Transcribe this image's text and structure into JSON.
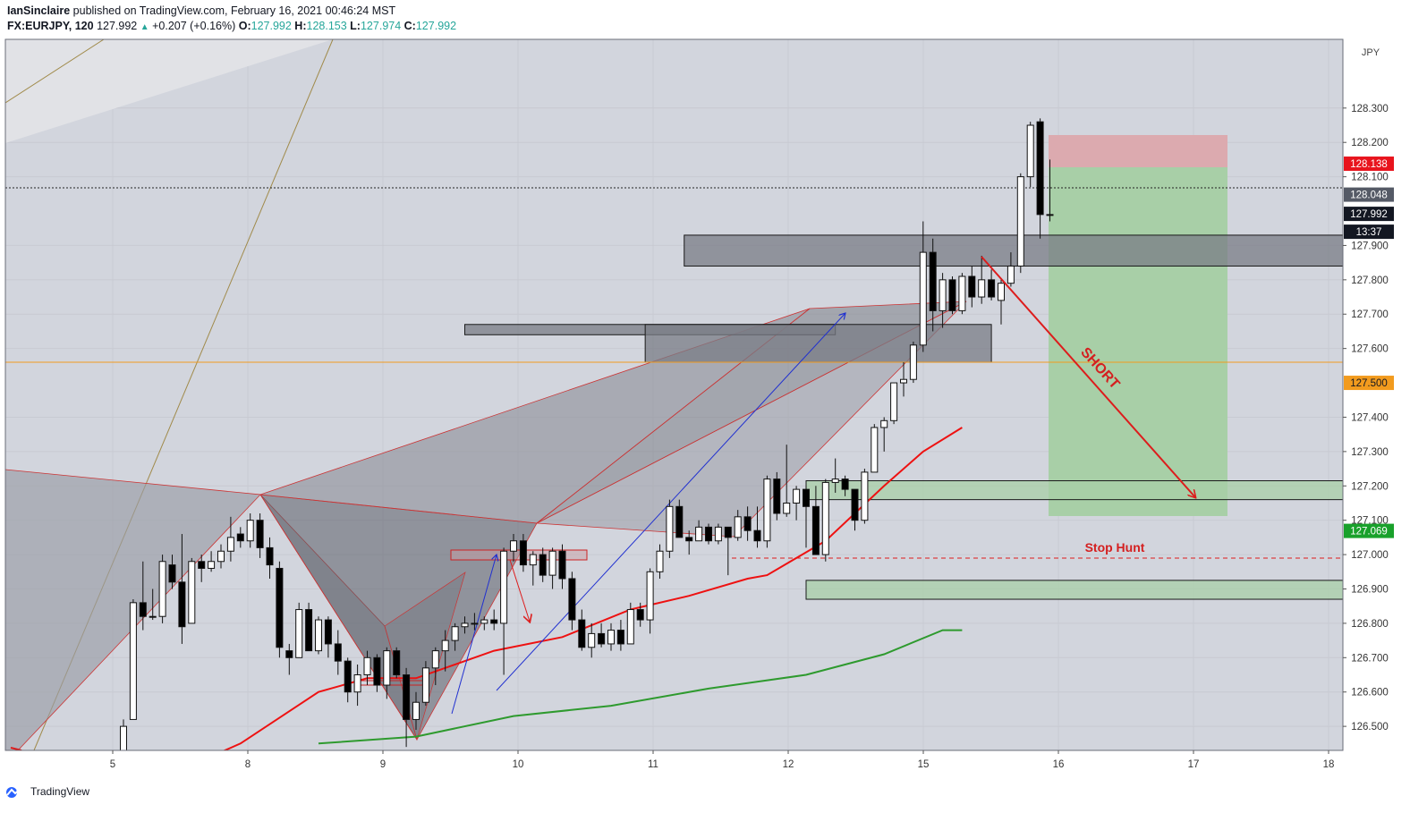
{
  "header": {
    "author": "IanSinclaire",
    "published_text": "published on TradingView.com, February 16, 2021 00:46:24 MST",
    "symbol": "FX:EURJPY, 120",
    "last": "127.992",
    "change": "+0.207 (+0.16%)",
    "o_label": "O:",
    "o": "127.992",
    "h_label": "H:",
    "h": "128.153",
    "l_label": "L:",
    "l": "127.974",
    "c_label": "C:",
    "c": "127.992"
  },
  "footer": {
    "brand": "TradingView"
  },
  "colors": {
    "background": "#d2d5dd",
    "bull": "#ffffff",
    "bear": "#000000",
    "ma_fast": "#ee1111",
    "ma_slow": "#2e9a2e",
    "pattern": "#7a7c86",
    "target_zone": "#a8cfa7",
    "stop_zone": "#dcaaaf",
    "annotation": "#d42020"
  },
  "chart_data": {
    "type": "candlestick",
    "currency": "JPY",
    "ylim": [
      126.43,
      128.5
    ],
    "x_tick_labels": [
      "5",
      "8",
      "9",
      "10",
      "11",
      "12",
      "15",
      "16",
      "17",
      "18"
    ],
    "y_tick_labels": [
      "128.300",
      "128.200",
      "128.100",
      "127.900",
      "127.800",
      "127.700",
      "127.600",
      "127.400",
      "127.300",
      "127.200",
      "127.100",
      "127.000",
      "126.900",
      "126.800",
      "126.700",
      "126.600",
      "126.500"
    ],
    "y_tick_values": [
      128.3,
      128.2,
      128.1,
      127.9,
      127.8,
      127.7,
      127.6,
      127.4,
      127.3,
      127.2,
      127.1,
      127.0,
      126.9,
      126.8,
      126.7,
      126.6,
      126.5
    ],
    "price_labels": [
      {
        "value": 128.138,
        "text": "128.138",
        "role": "stop"
      },
      {
        "value": 128.048,
        "text": "128.048",
        "role": "entry"
      },
      {
        "value": 127.992,
        "text": "127.992",
        "role": "last"
      },
      {
        "countdown": "13:37",
        "role": "countdown"
      },
      {
        "value": 127.5,
        "text": "127.500",
        "role": "level"
      },
      {
        "value": 127.069,
        "text": "127.069",
        "role": "target"
      }
    ],
    "candles": [
      [
        126.4,
        126.52,
        126.4,
        126.5
      ],
      [
        126.52,
        126.87,
        126.52,
        126.86
      ],
      [
        126.86,
        126.98,
        126.78,
        126.82
      ],
      [
        126.82,
        126.9,
        126.81,
        126.82
      ],
      [
        126.82,
        127.0,
        126.8,
        126.98
      ],
      [
        126.97,
        127.0,
        126.9,
        126.92
      ],
      [
        126.92,
        127.06,
        126.74,
        126.79
      ],
      [
        126.8,
        126.99,
        126.8,
        126.98
      ],
      [
        126.98,
        127.0,
        126.92,
        126.96
      ],
      [
        126.96,
        127.01,
        126.95,
        126.98
      ],
      [
        126.98,
        127.03,
        126.96,
        127.01
      ],
      [
        127.01,
        127.11,
        126.98,
        127.05
      ],
      [
        127.06,
        127.08,
        127.02,
        127.04
      ],
      [
        127.04,
        127.12,
        127.02,
        127.1
      ],
      [
        127.1,
        127.12,
        126.99,
        127.02
      ],
      [
        127.02,
        127.05,
        126.93,
        126.97
      ],
      [
        126.96,
        126.98,
        126.7,
        126.73
      ],
      [
        126.72,
        126.74,
        126.65,
        126.7
      ],
      [
        126.7,
        126.86,
        126.7,
        126.84
      ],
      [
        126.84,
        126.86,
        126.72,
        126.72
      ],
      [
        126.72,
        126.82,
        126.71,
        126.81
      ],
      [
        126.81,
        126.82,
        126.7,
        126.74
      ],
      [
        126.74,
        126.78,
        126.65,
        126.69
      ],
      [
        126.69,
        126.7,
        126.57,
        126.6
      ],
      [
        126.6,
        126.68,
        126.56,
        126.65
      ],
      [
        126.65,
        126.72,
        126.62,
        126.7
      ],
      [
        126.7,
        126.71,
        126.6,
        126.62
      ],
      [
        126.62,
        126.73,
        126.58,
        126.72
      ],
      [
        126.72,
        126.73,
        126.64,
        126.65
      ],
      [
        126.65,
        126.67,
        126.44,
        126.52
      ],
      [
        126.52,
        126.6,
        126.49,
        126.57
      ],
      [
        126.57,
        126.69,
        126.56,
        126.67
      ],
      [
        126.67,
        126.73,
        126.62,
        126.72
      ],
      [
        126.72,
        126.78,
        126.66,
        126.75
      ],
      [
        126.75,
        126.8,
        126.72,
        126.79
      ],
      [
        126.79,
        126.82,
        126.77,
        126.8
      ],
      [
        126.8,
        126.83,
        126.78,
        126.8
      ],
      [
        126.8,
        126.82,
        126.78,
        126.81
      ],
      [
        126.81,
        126.84,
        126.78,
        126.8
      ],
      [
        126.8,
        127.02,
        126.65,
        127.01
      ],
      [
        127.01,
        127.06,
        126.98,
        127.04
      ],
      [
        127.04,
        127.06,
        126.95,
        126.97
      ],
      [
        126.97,
        127.01,
        126.91,
        127.0
      ],
      [
        127.0,
        127.02,
        126.92,
        126.94
      ],
      [
        126.94,
        127.02,
        126.9,
        127.01
      ],
      [
        127.01,
        127.03,
        126.9,
        126.93
      ],
      [
        126.93,
        126.95,
        126.78,
        126.81
      ],
      [
        126.81,
        126.84,
        126.72,
        126.73
      ],
      [
        126.73,
        126.8,
        126.7,
        126.77
      ],
      [
        126.77,
        126.8,
        126.73,
        126.74
      ],
      [
        126.74,
        126.8,
        126.72,
        126.78
      ],
      [
        126.78,
        126.81,
        126.72,
        126.74
      ],
      [
        126.74,
        126.86,
        126.74,
        126.84
      ],
      [
        126.84,
        126.86,
        126.79,
        126.81
      ],
      [
        126.81,
        126.96,
        126.77,
        126.95
      ],
      [
        126.95,
        127.03,
        126.93,
        127.01
      ],
      [
        127.01,
        127.16,
        126.99,
        127.14
      ],
      [
        127.14,
        127.16,
        127.05,
        127.05
      ],
      [
        127.05,
        127.07,
        127.0,
        127.04
      ],
      [
        127.04,
        127.1,
        127.04,
        127.08
      ],
      [
        127.08,
        127.09,
        127.03,
        127.04
      ],
      [
        127.04,
        127.09,
        127.03,
        127.08
      ],
      [
        127.08,
        127.08,
        126.94,
        127.05
      ],
      [
        127.05,
        127.13,
        127.04,
        127.11
      ],
      [
        127.11,
        127.14,
        127.04,
        127.07
      ],
      [
        127.07,
        127.14,
        127.02,
        127.04
      ],
      [
        127.04,
        127.23,
        127.02,
        127.22
      ],
      [
        127.22,
        127.24,
        127.1,
        127.12
      ],
      [
        127.12,
        127.32,
        127.11,
        127.15
      ],
      [
        127.15,
        127.2,
        127.1,
        127.19
      ],
      [
        127.19,
        127.2,
        127.02,
        127.14
      ],
      [
        127.14,
        127.2,
        127.0,
        127.0
      ],
      [
        127.0,
        127.22,
        126.98,
        127.21
      ],
      [
        127.21,
        127.28,
        127.18,
        127.22
      ],
      [
        127.22,
        127.23,
        127.17,
        127.19
      ],
      [
        127.19,
        127.19,
        127.07,
        127.1
      ],
      [
        127.1,
        127.25,
        127.09,
        127.24
      ],
      [
        127.24,
        127.38,
        127.24,
        127.37
      ],
      [
        127.37,
        127.4,
        127.3,
        127.39
      ],
      [
        127.39,
        127.5,
        127.38,
        127.5
      ],
      [
        127.5,
        127.56,
        127.46,
        127.51
      ],
      [
        127.51,
        127.62,
        127.5,
        127.61
      ],
      [
        127.61,
        127.97,
        127.59,
        127.88
      ],
      [
        127.88,
        127.92,
        127.65,
        127.71
      ],
      [
        127.71,
        127.82,
        127.66,
        127.8
      ],
      [
        127.8,
        127.81,
        127.7,
        127.71
      ],
      [
        127.71,
        127.82,
        127.7,
        127.81
      ],
      [
        127.81,
        127.84,
        127.72,
        127.75
      ],
      [
        127.75,
        127.87,
        127.73,
        127.8
      ],
      [
        127.8,
        127.83,
        127.74,
        127.75
      ],
      [
        127.74,
        127.8,
        127.67,
        127.79
      ],
      [
        127.79,
        127.88,
        127.78,
        127.84
      ],
      [
        127.84,
        128.11,
        127.82,
        128.1
      ],
      [
        128.1,
        128.26,
        128.07,
        128.25
      ],
      [
        128.26,
        128.27,
        127.92,
        127.99
      ],
      [
        127.99,
        128.15,
        127.97,
        127.99
      ]
    ],
    "ma_fast": [
      [
        0,
        126.3
      ],
      [
        12,
        126.45
      ],
      [
        20,
        126.6
      ],
      [
        25,
        126.64
      ],
      [
        30,
        126.64
      ],
      [
        38,
        126.72
      ],
      [
        45,
        126.76
      ],
      [
        52,
        126.84
      ],
      [
        58,
        126.88
      ],
      [
        64,
        126.93
      ],
      [
        66,
        126.94
      ],
      [
        72,
        127.04
      ],
      [
        78,
        127.2
      ],
      [
        82,
        127.3
      ],
      [
        86,
        127.37
      ]
    ],
    "ma_slow": [
      [
        20,
        126.45
      ],
      [
        30,
        126.47
      ],
      [
        40,
        126.53
      ],
      [
        50,
        126.56
      ],
      [
        60,
        126.61
      ],
      [
        70,
        126.65
      ],
      [
        78,
        126.71
      ],
      [
        84,
        126.78
      ],
      [
        86,
        126.78
      ]
    ],
    "zones": [
      {
        "x0": 57.5,
        "x1": 99,
        "y0": 127.84,
        "y1": 127.93,
        "fill": "#7a7c86"
      },
      {
        "x0": 35,
        "x1": 73,
        "y0": 127.64,
        "y1": 127.67,
        "fill": "#7a7c86"
      },
      {
        "x0": 53.5,
        "x1": 89,
        "y0": 127.56,
        "y1": 127.67,
        "fill": "#7a7c86"
      },
      {
        "x0": 70,
        "x1": 99,
        "y0": 127.16,
        "y1": 127.215,
        "fill": "#a8cfa7"
      },
      {
        "x0": 70,
        "x1": 99,
        "y0": 126.87,
        "y1": 126.925,
        "fill": "#a8cfa7"
      }
    ],
    "annotations": [
      {
        "text": "SHORT",
        "type": "label"
      },
      {
        "text": "Stop Hunt",
        "type": "label"
      }
    ]
  }
}
